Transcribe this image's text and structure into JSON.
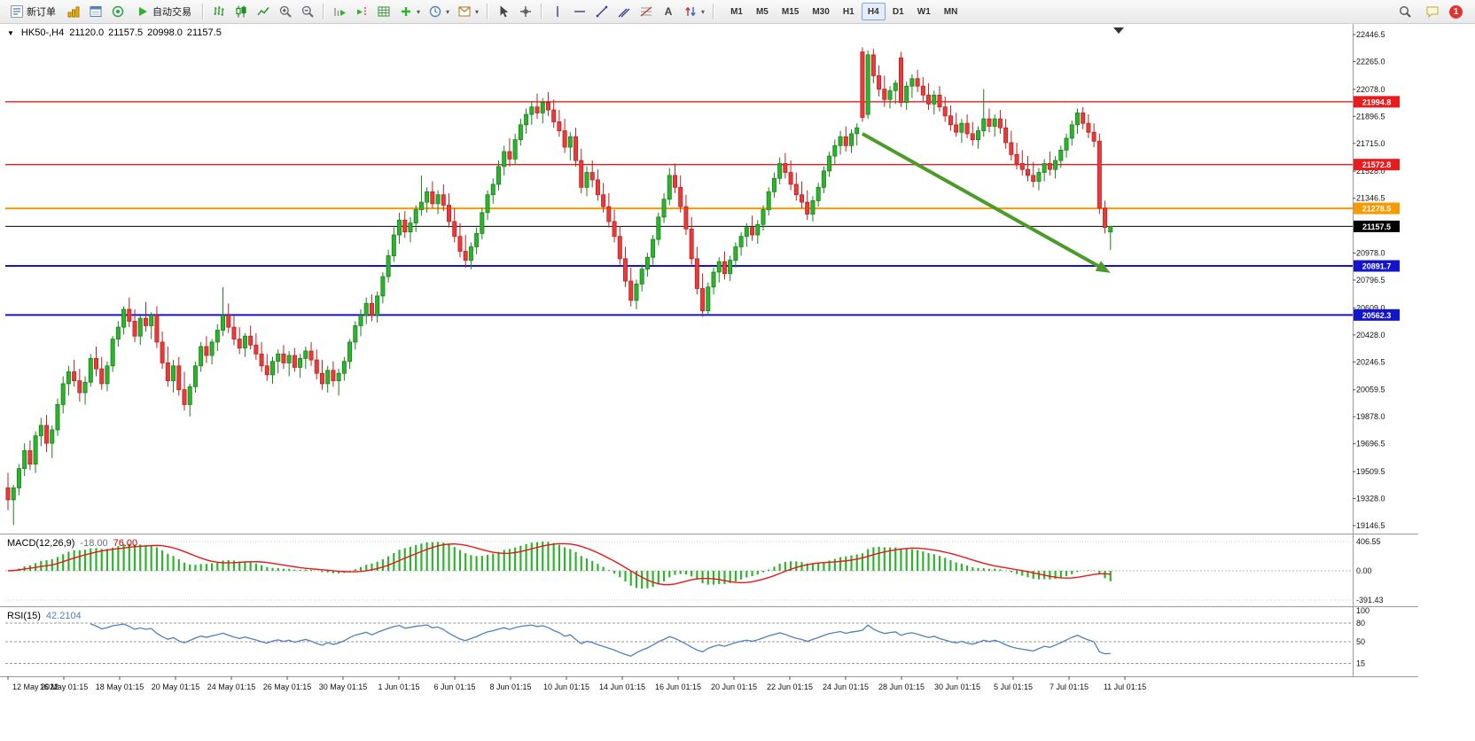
{
  "toolbar": {
    "new_order": "新订单",
    "auto_trading": "自动交易",
    "timeframes": [
      "M1",
      "M5",
      "M15",
      "M30",
      "H1",
      "H4",
      "D1",
      "W1",
      "MN"
    ],
    "active_timeframe": "H4",
    "notification_badge": "1",
    "icon_buttons": [
      "market-watch",
      "data-window",
      "terminal",
      "bar-chart",
      "candlestick-chart",
      "line-chart",
      "zoom-in",
      "zoom-out",
      "auto-scroll",
      "chart-shift",
      "grid",
      "add-indicator",
      "periods",
      "templates",
      "cursor",
      "crosshair",
      "vertical-line",
      "horizontal-line",
      "trendline",
      "equidistant-channel",
      "fibonacci",
      "text",
      "arrows",
      "search",
      "chat"
    ]
  },
  "chart": {
    "symbol_period": "HK50-,H4",
    "open": "21120.0",
    "high": "21157.5",
    "low": "20998.0",
    "close": "21157.5"
  },
  "chart_data": {
    "type": "candlestick",
    "symbol": "HK50-",
    "timeframe": "H4",
    "price_range": {
      "top": 22446.5,
      "bottom": 19146.5
    },
    "price_axis_labels": [
      "22446.5",
      "22265.0",
      "22078.0",
      "21896.5",
      "21715.0",
      "21528.0",
      "21346.5",
      "20978.0",
      "20796.5",
      "20609.0",
      "20428.0",
      "20246.5",
      "20059.5",
      "19878.0",
      "19696.5",
      "19509.5",
      "19328.0",
      "19146.5"
    ],
    "time_axis_labels": [
      "12 May 2022",
      "16 May 01:15",
      "18 May 01:15",
      "20 May 01:15",
      "24 May 01:15",
      "26 May 01:15",
      "30 May 01:15",
      "1 Jun 01:15",
      "6 Jun 01:15",
      "8 Jun 01:15",
      "10 Jun 01:15",
      "14 Jun 01:15",
      "16 Jun 01:15",
      "20 Jun 01:15",
      "22 Jun 01:15",
      "24 Jun 01:15",
      "28 Jun 01:15",
      "30 Jun 01:15",
      "5 Jul 01:15",
      "7 Jul 01:15",
      "11 Jul 01:15"
    ],
    "horizontal_lines": [
      {
        "price": 21994.8,
        "label": "21994.8",
        "color": "#e81c1c",
        "width": 1.4
      },
      {
        "price": 21572.8,
        "label": "21572.8",
        "color": "#e81c1c",
        "width": 1.4
      },
      {
        "price": 21278.5,
        "label": "21278.5",
        "color": "#f59a00",
        "width": 2
      },
      {
        "price": 21157.5,
        "label": "21157.5",
        "color": "#000000",
        "width": 1,
        "current": true
      },
      {
        "price": 20891.7,
        "label": "20891.7",
        "color": "#1414cc",
        "width": 2
      },
      {
        "price": 20562.3,
        "label": "20562.3",
        "color": "#1414cc",
        "width": 2
      }
    ],
    "trend_arrow": {
      "from_index": 155,
      "from_price": 21780,
      "to_index": 200,
      "to_price": 20845,
      "color": "#4c9a2a"
    },
    "colors": {
      "up": "#2eb32e",
      "up_stroke": "#17821a",
      "down": "#e83c3c",
      "down_stroke": "#bf1f1f",
      "macd_hist": "#2eb32e",
      "macd_signal": "#e81818",
      "rsi_line": "#4f81bd"
    },
    "macd": {
      "label": "MACD(12,26,9)",
      "value1": "-18.00",
      "value2": "76.00",
      "axis_labels": [
        "406.55",
        "0.00",
        "-391.43"
      ],
      "fast": 12,
      "slow": 26,
      "signal": 9
    },
    "rsi": {
      "label": "RSI(15)",
      "value": "42.2104",
      "axis_labels": [
        "100",
        "80",
        "50",
        "15"
      ],
      "levels": [
        80,
        50,
        15
      ],
      "period": 15
    },
    "candles": [
      [
        19400,
        19500,
        19250,
        19320
      ],
      [
        19320,
        19420,
        19150,
        19400
      ],
      [
        19400,
        19560,
        19350,
        19530
      ],
      [
        19530,
        19700,
        19480,
        19650
      ],
      [
        19650,
        19720,
        19520,
        19560
      ],
      [
        19560,
        19780,
        19500,
        19750
      ],
      [
        19750,
        19870,
        19680,
        19820
      ],
      [
        19820,
        19890,
        19640,
        19700
      ],
      [
        19700,
        19820,
        19600,
        19790
      ],
      [
        19790,
        20000,
        19750,
        19960
      ],
      [
        19960,
        20150,
        19900,
        20100
      ],
      [
        20100,
        20220,
        20020,
        20180
      ],
      [
        20180,
        20260,
        20080,
        20120
      ],
      [
        20120,
        20200,
        19980,
        20040
      ],
      [
        20040,
        20150,
        19960,
        20110
      ],
      [
        20110,
        20300,
        20080,
        20270
      ],
      [
        20270,
        20350,
        20150,
        20200
      ],
      [
        20200,
        20280,
        20060,
        20100
      ],
      [
        20100,
        20250,
        20050,
        20220
      ],
      [
        20220,
        20420,
        20180,
        20400
      ],
      [
        20400,
        20520,
        20350,
        20480
      ],
      [
        20480,
        20620,
        20430,
        20600
      ],
      [
        20600,
        20680,
        20480,
        20520
      ],
      [
        20520,
        20600,
        20380,
        20420
      ],
      [
        20420,
        20560,
        20360,
        20540
      ],
      [
        20540,
        20650,
        20450,
        20490
      ],
      [
        20490,
        20580,
        20400,
        20560
      ],
      [
        20560,
        20620,
        20340,
        20380
      ],
      [
        20380,
        20450,
        20200,
        20240
      ],
      [
        20240,
        20350,
        20080,
        20120
      ],
      [
        20120,
        20260,
        20040,
        20220
      ],
      [
        20220,
        20280,
        20020,
        20060
      ],
      [
        20060,
        20180,
        19920,
        19960
      ],
      [
        19960,
        20100,
        19880,
        20080
      ],
      [
        20080,
        20250,
        20040,
        20220
      ],
      [
        20220,
        20380,
        20180,
        20350
      ],
      [
        20350,
        20420,
        20240,
        20290
      ],
      [
        20290,
        20400,
        20230,
        20380
      ],
      [
        20380,
        20500,
        20320,
        20460
      ],
      [
        20460,
        20750,
        20420,
        20560
      ],
      [
        20560,
        20640,
        20440,
        20480
      ],
      [
        20480,
        20560,
        20360,
        20400
      ],
      [
        20400,
        20480,
        20300,
        20340
      ],
      [
        20340,
        20440,
        20280,
        20420
      ],
      [
        20420,
        20490,
        20330,
        20360
      ],
      [
        20360,
        20440,
        20260,
        20300
      ],
      [
        20300,
        20380,
        20180,
        20220
      ],
      [
        20220,
        20300,
        20120,
        20160
      ],
      [
        20160,
        20280,
        20100,
        20250
      ],
      [
        20250,
        20330,
        20170,
        20300
      ],
      [
        20300,
        20360,
        20200,
        20240
      ],
      [
        20240,
        20320,
        20150,
        20290
      ],
      [
        20290,
        20340,
        20180,
        20210
      ],
      [
        20210,
        20300,
        20140,
        20270
      ],
      [
        20270,
        20350,
        20200,
        20320
      ],
      [
        20320,
        20380,
        20220,
        20260
      ],
      [
        20260,
        20330,
        20130,
        20170
      ],
      [
        20170,
        20260,
        20060,
        20100
      ],
      [
        20100,
        20220,
        20040,
        20190
      ],
      [
        20190,
        20250,
        20080,
        20120
      ],
      [
        20120,
        20200,
        20020,
        20170
      ],
      [
        20170,
        20280,
        20120,
        20250
      ],
      [
        20250,
        20400,
        20200,
        20380
      ],
      [
        20380,
        20520,
        20330,
        20490
      ],
      [
        20490,
        20600,
        20420,
        20560
      ],
      [
        20560,
        20680,
        20500,
        20640
      ],
      [
        20640,
        20700,
        20520,
        20560
      ],
      [
        20560,
        20720,
        20510,
        20690
      ],
      [
        20690,
        20850,
        20640,
        20820
      ],
      [
        20820,
        21000,
        20780,
        20960
      ],
      [
        20960,
        21150,
        20920,
        21100
      ],
      [
        21100,
        21250,
        21040,
        21200
      ],
      [
        21200,
        21260,
        21080,
        21120
      ],
      [
        21120,
        21220,
        21050,
        21180
      ],
      [
        21180,
        21300,
        21120,
        21270
      ],
      [
        21270,
        21500,
        21230,
        21320
      ],
      [
        21320,
        21420,
        21250,
        21390
      ],
      [
        21390,
        21460,
        21280,
        21310
      ],
      [
        21310,
        21400,
        21240,
        21370
      ],
      [
        21370,
        21440,
        21260,
        21300
      ],
      [
        21300,
        21380,
        21150,
        21190
      ],
      [
        21190,
        21280,
        21050,
        21090
      ],
      [
        21090,
        21180,
        20950,
        20990
      ],
      [
        20990,
        21100,
        20880,
        20930
      ],
      [
        20930,
        21050,
        20870,
        21020
      ],
      [
        21020,
        21150,
        20970,
        21110
      ],
      [
        21110,
        21280,
        21070,
        21250
      ],
      [
        21250,
        21400,
        21200,
        21370
      ],
      [
        21370,
        21480,
        21310,
        21440
      ],
      [
        21440,
        21600,
        21400,
        21560
      ],
      [
        21560,
        21700,
        21500,
        21660
      ],
      [
        21660,
        21750,
        21560,
        21610
      ],
      [
        21610,
        21780,
        21570,
        21740
      ],
      [
        21740,
        21880,
        21700,
        21840
      ],
      [
        21840,
        21950,
        21780,
        21910
      ],
      [
        21910,
        22000,
        21840,
        21960
      ],
      [
        21960,
        22050,
        21880,
        21920
      ],
      [
        21920,
        22020,
        21850,
        21990
      ],
      [
        21990,
        22060,
        21900,
        21940
      ],
      [
        21940,
        22010,
        21820,
        21860
      ],
      [
        21860,
        21940,
        21760,
        21800
      ],
      [
        21800,
        21880,
        21650,
        21690
      ],
      [
        21690,
        21790,
        21600,
        21760
      ],
      [
        21760,
        21820,
        21560,
        21600
      ],
      [
        21600,
        21680,
        21380,
        21420
      ],
      [
        21420,
        21560,
        21360,
        21520
      ],
      [
        21520,
        21600,
        21420,
        21470
      ],
      [
        21470,
        21540,
        21330,
        21370
      ],
      [
        21370,
        21450,
        21250,
        21290
      ],
      [
        21290,
        21380,
        21150,
        21190
      ],
      [
        21190,
        21270,
        21050,
        21090
      ],
      [
        21090,
        21160,
        20900,
        20940
      ],
      [
        20940,
        21020,
        20750,
        20790
      ],
      [
        20790,
        20880,
        20620,
        20660
      ],
      [
        20660,
        20800,
        20600,
        20770
      ],
      [
        20770,
        20900,
        20720,
        20870
      ],
      [
        20870,
        20980,
        20820,
        20950
      ],
      [
        20950,
        21100,
        20900,
        21070
      ],
      [
        21070,
        21250,
        21030,
        21220
      ],
      [
        21220,
        21380,
        21180,
        21340
      ],
      [
        21340,
        21550,
        21300,
        21500
      ],
      [
        21500,
        21580,
        21380,
        21420
      ],
      [
        21420,
        21500,
        21250,
        21290
      ],
      [
        21290,
        21370,
        21100,
        21140
      ],
      [
        21140,
        21220,
        20900,
        20940
      ],
      [
        20940,
        21020,
        20700,
        20740
      ],
      [
        20740,
        20840,
        20550,
        20590
      ],
      [
        20590,
        20780,
        20560,
        20750
      ],
      [
        20750,
        20880,
        20700,
        20850
      ],
      [
        20850,
        20950,
        20780,
        20920
      ],
      [
        20920,
        20990,
        20800,
        20840
      ],
      [
        20840,
        20960,
        20790,
        20930
      ],
      [
        20930,
        21050,
        20880,
        21020
      ],
      [
        21020,
        21120,
        20960,
        21090
      ],
      [
        21090,
        21180,
        21020,
        21150
      ],
      [
        21150,
        21230,
        21060,
        21100
      ],
      [
        21100,
        21200,
        21040,
        21170
      ],
      [
        21170,
        21300,
        21130,
        21270
      ],
      [
        21270,
        21420,
        21230,
        21390
      ],
      [
        21390,
        21520,
        21350,
        21480
      ],
      [
        21480,
        21620,
        21440,
        21580
      ],
      [
        21580,
        21650,
        21480,
        21520
      ],
      [
        21520,
        21600,
        21400,
        21440
      ],
      [
        21440,
        21520,
        21330,
        21370
      ],
      [
        21370,
        21460,
        21280,
        21320
      ],
      [
        21320,
        21400,
        21200,
        21240
      ],
      [
        21240,
        21360,
        21190,
        21330
      ],
      [
        21330,
        21450,
        21290,
        21420
      ],
      [
        21420,
        21560,
        21380,
        21530
      ],
      [
        21530,
        21660,
        21490,
        21630
      ],
      [
        21630,
        21740,
        21570,
        21700
      ],
      [
        21700,
        21800,
        21640,
        21760
      ],
      [
        21760,
        21830,
        21660,
        21700
      ],
      [
        21700,
        21810,
        21650,
        21780
      ],
      [
        21780,
        21850,
        21700,
        21820
      ],
      [
        22330,
        22360,
        21860,
        21890
      ],
      [
        21910,
        22340,
        21880,
        22310
      ],
      [
        22310,
        22350,
        22120,
        22170
      ],
      [
        22170,
        22240,
        22030,
        22080
      ],
      [
        22080,
        22170,
        21960,
        22010
      ],
      [
        22010,
        22100,
        21950,
        22070
      ],
      [
        22070,
        22140,
        21980,
        22120
      ],
      [
        22290,
        22330,
        21960,
        21990
      ],
      [
        21990,
        22130,
        21940,
        22100
      ],
      [
        22100,
        22180,
        22020,
        22150
      ],
      [
        22150,
        22210,
        22060,
        22100
      ],
      [
        22100,
        22160,
        22000,
        22040
      ],
      [
        22040,
        22120,
        21940,
        21980
      ],
      [
        21980,
        22070,
        21910,
        22040
      ],
      [
        22040,
        22100,
        21930,
        21960
      ],
      [
        21960,
        22030,
        21860,
        21900
      ],
      [
        21900,
        21970,
        21800,
        21840
      ],
      [
        21840,
        21920,
        21760,
        21790
      ],
      [
        21790,
        21880,
        21720,
        21850
      ],
      [
        21850,
        21910,
        21750,
        21780
      ],
      [
        21780,
        21860,
        21700,
        21740
      ],
      [
        21740,
        21830,
        21680,
        21800
      ],
      [
        21800,
        22080,
        21760,
        21880
      ],
      [
        21880,
        21950,
        21790,
        21830
      ],
      [
        21830,
        21910,
        21760,
        21880
      ],
      [
        21880,
        21940,
        21780,
        21820
      ],
      [
        21820,
        21880,
        21680,
        21720
      ],
      [
        21720,
        21800,
        21600,
        21640
      ],
      [
        21640,
        21720,
        21540,
        21580
      ],
      [
        21580,
        21670,
        21500,
        21540
      ],
      [
        21540,
        21630,
        21460,
        21500
      ],
      [
        21500,
        21590,
        21420,
        21460
      ],
      [
        21460,
        21550,
        21400,
        21520
      ],
      [
        21520,
        21610,
        21460,
        21580
      ],
      [
        21580,
        21660,
        21500,
        21540
      ],
      [
        21540,
        21630,
        21480,
        21600
      ],
      [
        21600,
        21700,
        21550,
        21670
      ],
      [
        21670,
        21780,
        21620,
        21750
      ],
      [
        21750,
        21870,
        21700,
        21840
      ],
      [
        21840,
        21950,
        21780,
        21920
      ],
      [
        21920,
        21960,
        21810,
        21850
      ],
      [
        21850,
        21910,
        21750,
        21790
      ],
      [
        21790,
        21850,
        21690,
        21730
      ],
      [
        21730,
        21780,
        21240,
        21280
      ],
      [
        21280,
        21330,
        21110,
        21150
      ],
      [
        21120,
        21157.5,
        20998,
        21157.5
      ]
    ]
  }
}
